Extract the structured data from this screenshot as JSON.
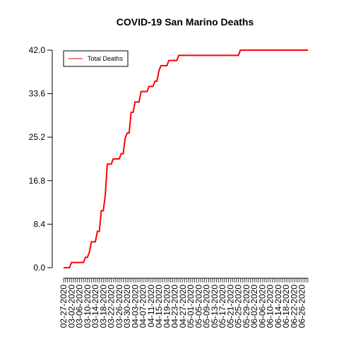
{
  "chart_data": {
    "type": "line",
    "title": "COVID-19 San Marino Deaths",
    "xlabel": "",
    "ylabel": "",
    "ylim": [
      0,
      42
    ],
    "yticks": [
      "0.0",
      "8.4",
      "16.8",
      "25.2",
      "33.6",
      "42.0"
    ],
    "grid": false,
    "legend_position": "top-left",
    "x_start": "2020-02-27",
    "x_end": "2020-06-29",
    "xtick_labels": [
      "02-27-2020",
      "03-02-2020",
      "03-06-2020",
      "03-10-2020",
      "03-14-2020",
      "03-18-2020",
      "03-22-2020",
      "03-26-2020",
      "03-30-2020",
      "04-03-2020",
      "04-07-2020",
      "04-11-2020",
      "04-15-2020",
      "04-19-2020",
      "04-23-2020",
      "04-27-2020",
      "05-01-2020",
      "05-05-2020",
      "05-09-2020",
      "05-13-2020",
      "05-17-2020",
      "05-21-2020",
      "05-25-2020",
      "05-29-2020",
      "06-02-2020",
      "06-06-2020",
      "06-10-2020",
      "06-14-2020",
      "06-18-2020",
      "06-22-2020",
      "06-26-2020"
    ],
    "series": [
      {
        "name": "Total Deaths",
        "color": "#ff0000",
        "values": [
          0,
          0,
          0,
          0,
          1,
          1,
          1,
          1,
          1,
          1,
          1,
          2,
          2,
          3,
          5,
          5,
          5,
          7,
          7,
          11,
          11,
          14,
          20,
          20,
          20,
          21,
          21,
          21,
          21,
          22,
          22,
          25,
          26,
          26,
          30,
          30,
          32,
          32,
          32,
          34,
          34,
          34,
          34,
          35,
          35,
          35,
          36,
          36,
          38,
          39,
          39,
          39,
          39,
          40,
          40,
          40,
          40,
          40,
          41,
          41,
          41,
          41,
          41,
          41,
          41,
          41,
          41,
          41,
          41,
          41,
          41,
          41,
          41,
          41,
          41,
          41,
          41,
          41,
          41,
          41,
          41,
          41,
          41,
          41,
          41,
          41,
          41,
          41,
          41,
          42,
          42,
          42,
          42,
          42,
          42,
          42,
          42,
          42,
          42,
          42,
          42,
          42,
          42,
          42,
          42,
          42,
          42,
          42,
          42,
          42,
          42,
          42,
          42,
          42,
          42,
          42,
          42,
          42,
          42,
          42,
          42,
          42,
          42,
          42
        ]
      }
    ]
  }
}
